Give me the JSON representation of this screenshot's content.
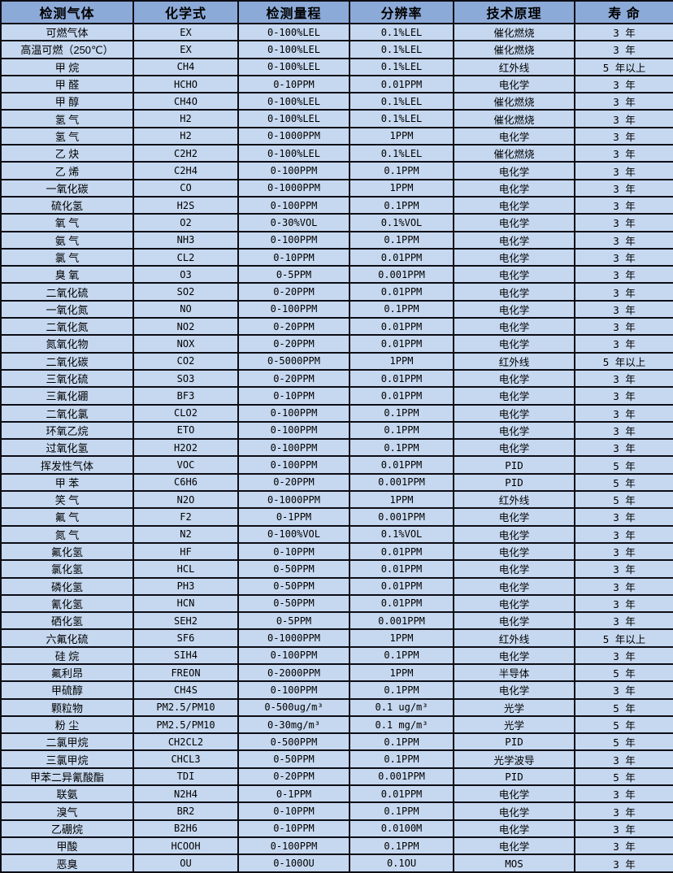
{
  "colors": {
    "header_bg": "#8caad8",
    "row_bg": "#c6d8f0",
    "border": "#0d0d15",
    "text": "#000000"
  },
  "table": {
    "columns": [
      "检测气体",
      "化学式",
      "检测量程",
      "分辨率",
      "技术原理",
      "寿 命"
    ],
    "field_order": [
      "gas",
      "formula",
      "range",
      "resolution",
      "principle",
      "life"
    ],
    "col_names": [
      "gas-name-cell",
      "formula-cell",
      "range-cell",
      "resolution-cell",
      "principle-cell",
      "life-cell"
    ],
    "rows": [
      {
        "gas": "可燃气体",
        "formula": "EX",
        "range": "0-100%LEL",
        "resolution": "0.1%LEL",
        "principle": "催化燃烧",
        "life": "3 年"
      },
      {
        "gas": "高温可燃（250℃）",
        "formula": "EX",
        "range": "0-100%LEL",
        "resolution": "0.1%LEL",
        "principle": "催化燃烧",
        "life": "3 年"
      },
      {
        "gas": "甲 烷",
        "formula": "CH4",
        "range": "0-100%LEL",
        "resolution": "0.1%LEL",
        "principle": "红外线",
        "life": "5 年以上"
      },
      {
        "gas": "甲 醛",
        "formula": "HCHO",
        "range": "0-10PPM",
        "resolution": "0.01PPM",
        "principle": "电化学",
        "life": "3 年"
      },
      {
        "gas": "甲 醇",
        "formula": "CH4O",
        "range": "0-100%LEL",
        "resolution": "0.1%LEL",
        "principle": "催化燃烧",
        "life": "3 年"
      },
      {
        "gas": "氢 气",
        "formula": "H2",
        "range": "0-100%LEL",
        "resolution": "0.1%LEL",
        "principle": "催化燃烧",
        "life": "3 年"
      },
      {
        "gas": "氢 气",
        "formula": "H2",
        "range": "0-1000PPM",
        "resolution": "1PPM",
        "principle": "电化学",
        "life": "3 年"
      },
      {
        "gas": "乙 炔",
        "formula": "C2H2",
        "range": "0-100%LEL",
        "resolution": "0.1%LEL",
        "principle": "催化燃烧",
        "life": "3 年"
      },
      {
        "gas": "乙 烯",
        "formula": "C2H4",
        "range": "0-100PPM",
        "resolution": "0.1PPM",
        "principle": "电化学",
        "life": "3 年"
      },
      {
        "gas": "一氧化碳",
        "formula": "CO",
        "range": "0-1000PPM",
        "resolution": "1PPM",
        "principle": "电化学",
        "life": "3 年"
      },
      {
        "gas": "硫化氢",
        "formula": "H2S",
        "range": "0-100PPM",
        "resolution": "0.1PPM",
        "principle": "电化学",
        "life": "3 年"
      },
      {
        "gas": "氧 气",
        "formula": "O2",
        "range": "0-30%VOL",
        "resolution": "0.1%VOL",
        "principle": "电化学",
        "life": "3 年"
      },
      {
        "gas": "氨 气",
        "formula": "NH3",
        "range": "0-100PPM",
        "resolution": "0.1PPM",
        "principle": "电化学",
        "life": "3 年"
      },
      {
        "gas": "氯 气",
        "formula": "CL2",
        "range": "0-10PPM",
        "resolution": "0.01PPM",
        "principle": "电化学",
        "life": "3 年"
      },
      {
        "gas": "臭 氧",
        "formula": "O3",
        "range": "0-5PPM",
        "resolution": "0.001PPM",
        "principle": "电化学",
        "life": "3 年"
      },
      {
        "gas": "二氧化硫",
        "formula": "SO2",
        "range": "0-20PPM",
        "resolution": "0.01PPM",
        "principle": "电化学",
        "life": "3 年"
      },
      {
        "gas": "一氧化氮",
        "formula": "NO",
        "range": "0-100PPM",
        "resolution": "0.1PPM",
        "principle": "电化学",
        "life": "3 年"
      },
      {
        "gas": "二氧化氮",
        "formula": "NO2",
        "range": "0-20PPM",
        "resolution": "0.01PPM",
        "principle": "电化学",
        "life": "3 年"
      },
      {
        "gas": "氮氧化物",
        "formula": "NOX",
        "range": "0-20PPM",
        "resolution": "0.01PPM",
        "principle": "电化学",
        "life": "3 年"
      },
      {
        "gas": "二氧化碳",
        "formula": "CO2",
        "range": "0-5000PPM",
        "resolution": "1PPM",
        "principle": "红外线",
        "life": "5 年以上"
      },
      {
        "gas": "三氧化硫",
        "formula": "SO3",
        "range": "0-20PPM",
        "resolution": "0.01PPM",
        "principle": "电化学",
        "life": "3 年"
      },
      {
        "gas": "三氟化硼",
        "formula": "BF3",
        "range": "0-10PPM",
        "resolution": "0.01PPM",
        "principle": "电化学",
        "life": "3 年"
      },
      {
        "gas": "二氧化氯",
        "formula": "CLO2",
        "range": "0-100PPM",
        "resolution": "0.1PPM",
        "principle": "电化学",
        "life": "3 年"
      },
      {
        "gas": "环氧乙烷",
        "formula": "ETO",
        "range": "0-100PPM",
        "resolution": "0.1PPM",
        "principle": "电化学",
        "life": "3 年"
      },
      {
        "gas": "过氧化氢",
        "formula": "H2O2",
        "range": "0-100PPM",
        "resolution": "0.1PPM",
        "principle": "电化学",
        "life": "3 年"
      },
      {
        "gas": "挥发性气体",
        "formula": "VOC",
        "range": "0-100PPM",
        "resolution": "0.01PPM",
        "principle": "PID",
        "life": "5 年"
      },
      {
        "gas": "甲 苯",
        "formula": "C6H6",
        "range": "0-20PPM",
        "resolution": "0.001PPM",
        "principle": "PID",
        "life": "5 年"
      },
      {
        "gas": "笑 气",
        "formula": "N2O",
        "range": "0-1000PPM",
        "resolution": "1PPM",
        "principle": "红外线",
        "life": "5 年"
      },
      {
        "gas": "氟 气",
        "formula": "F2",
        "range": "0-1PPM",
        "resolution": "0.001PPM",
        "principle": "电化学",
        "life": "3 年"
      },
      {
        "gas": "氮 气",
        "formula": "N2",
        "range": "0-100%VOL",
        "resolution": "0.1%VOL",
        "principle": "电化学",
        "life": "3 年"
      },
      {
        "gas": "氟化氢",
        "formula": "HF",
        "range": "0-10PPM",
        "resolution": "0.01PPM",
        "principle": "电化学",
        "life": "3 年"
      },
      {
        "gas": "氯化氢",
        "formula": "HCL",
        "range": "0-50PPM",
        "resolution": "0.01PPM",
        "principle": "电化学",
        "life": "3 年"
      },
      {
        "gas": "磷化氢",
        "formula": "PH3",
        "range": "0-50PPM",
        "resolution": "0.01PPM",
        "principle": "电化学",
        "life": "3 年"
      },
      {
        "gas": "氰化氢",
        "formula": "HCN",
        "range": "0-50PPM",
        "resolution": "0.01PPM",
        "principle": "电化学",
        "life": "3 年"
      },
      {
        "gas": "硒化氢",
        "formula": "SEH2",
        "range": "0-5PPM",
        "resolution": "0.001PPM",
        "principle": "电化学",
        "life": "3 年"
      },
      {
        "gas": "六氟化硫",
        "formula": "SF6",
        "range": "0-1000PPM",
        "resolution": "1PPM",
        "principle": "红外线",
        "life": "5 年以上"
      },
      {
        "gas": "硅 烷",
        "formula": "SIH4",
        "range": "0-100PPM",
        "resolution": "0.1PPM",
        "principle": "电化学",
        "life": "3 年"
      },
      {
        "gas": "氟利昂",
        "formula": "FREON",
        "range": "0-2000PPM",
        "resolution": "1PPM",
        "principle": "半导体",
        "life": "5 年"
      },
      {
        "gas": "甲硫醇",
        "formula": "CH4S",
        "range": "0-100PPM",
        "resolution": "0.1PPM",
        "principle": "电化学",
        "life": "3 年"
      },
      {
        "gas": "颗粒物",
        "formula": "PM2.5/PM10",
        "range": "0-500ug/m³",
        "resolution": "0.1 ug/m³",
        "principle": "光学",
        "life": "5 年"
      },
      {
        "gas": "粉 尘",
        "formula": "PM2.5/PM10",
        "range": "0-30mg/m³",
        "resolution": "0.1 mg/m³",
        "principle": "光学",
        "life": "5 年"
      },
      {
        "gas": "二氯甲烷",
        "formula": "CH2CL2",
        "range": "0-500PPM",
        "resolution": "0.1PPM",
        "principle": "PID",
        "life": "5 年"
      },
      {
        "gas": "三氯甲烷",
        "formula": "CHCL3",
        "range": "0-50PPM",
        "resolution": "0.1PPM",
        "principle": "光学波导",
        "life": "3 年"
      },
      {
        "gas": "甲苯二异氰酸酯",
        "formula": "TDI",
        "range": "0-20PPM",
        "resolution": "0.001PPM",
        "principle": "PID",
        "life": "5 年"
      },
      {
        "gas": "联氨",
        "formula": "N2H4",
        "range": "0-1PPM",
        "resolution": "0.01PPM",
        "principle": "电化学",
        "life": "3 年"
      },
      {
        "gas": "溴气",
        "formula": "BR2",
        "range": "0-10PPM",
        "resolution": "0.1PPM",
        "principle": "电化学",
        "life": "3 年"
      },
      {
        "gas": "乙硼烷",
        "formula": "B2H6",
        "range": "0-10PPM",
        "resolution": "0.0100M",
        "principle": "电化学",
        "life": "3 年"
      },
      {
        "gas": "甲酸",
        "formula": "HCOOH",
        "range": "0-100PPM",
        "resolution": "0.1PPM",
        "principle": "电化学",
        "life": "3 年"
      },
      {
        "gas": "恶臭",
        "formula": "OU",
        "range": "0-100OU",
        "resolution": "0.1OU",
        "principle": "MOS",
        "life": "3 年"
      }
    ]
  }
}
